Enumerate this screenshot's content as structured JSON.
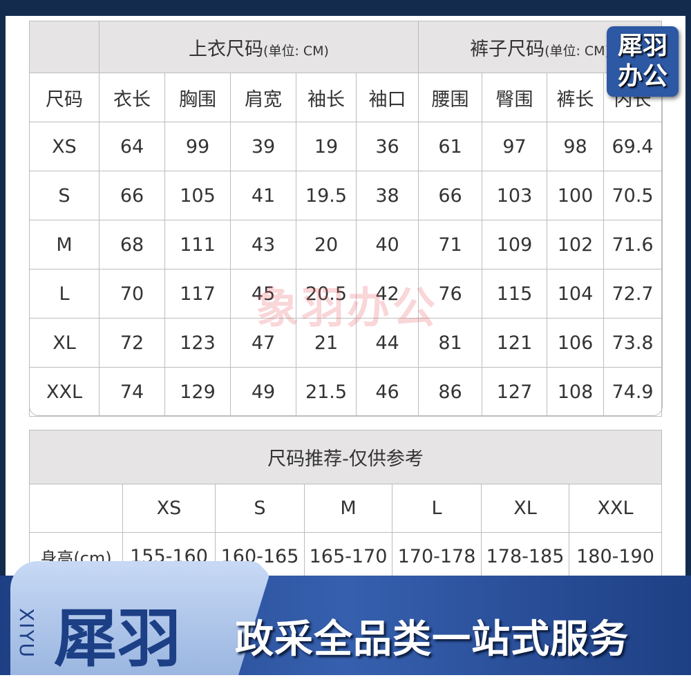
{
  "top_table": {
    "top_header": "上衣尺码",
    "top_unit": "(单位: CM)",
    "pants_header": "裤子尺码",
    "pants_unit": "(单位: CM)",
    "columns": [
      "尺码",
      "衣长",
      "胸围",
      "肩宽",
      "袖长",
      "袖口",
      "腰围",
      "臀围",
      "裤长",
      "内长"
    ],
    "rows": [
      [
        "XS",
        "64",
        "99",
        "39",
        "19",
        "36",
        "61",
        "97",
        "98",
        "69.4"
      ],
      [
        "S",
        "66",
        "105",
        "41",
        "19.5",
        "38",
        "66",
        "103",
        "100",
        "70.5"
      ],
      [
        "M",
        "68",
        "111",
        "43",
        "20",
        "40",
        "71",
        "109",
        "102",
        "71.6"
      ],
      [
        "L",
        "70",
        "117",
        "45",
        "20.5",
        "42",
        "76",
        "115",
        "104",
        "72.7"
      ],
      [
        "XL",
        "72",
        "123",
        "47",
        "21",
        "44",
        "81",
        "121",
        "106",
        "73.8"
      ],
      [
        "XXL",
        "74",
        "129",
        "49",
        "21.5",
        "46",
        "86",
        "127",
        "108",
        "74.9"
      ]
    ]
  },
  "recommend_table": {
    "title": "尺码推荐-仅供参考",
    "sizes": [
      "XS",
      "S",
      "M",
      "L",
      "XL",
      "XXL"
    ],
    "height_label": "身高(cm)",
    "heights": [
      "155-160",
      "160-165",
      "165-170",
      "170-178",
      "178-185",
      "180-190"
    ]
  },
  "watermark": "象羽办公",
  "logo_badge": "犀羽办公",
  "banner": {
    "latin": "XIYU",
    "brand": "犀羽",
    "slogan": "政采全品类一站式服务"
  },
  "colors": {
    "frame": "#132c4e",
    "banner_blue": "#2d58a3",
    "header_gray": "#e6e4e4"
  }
}
